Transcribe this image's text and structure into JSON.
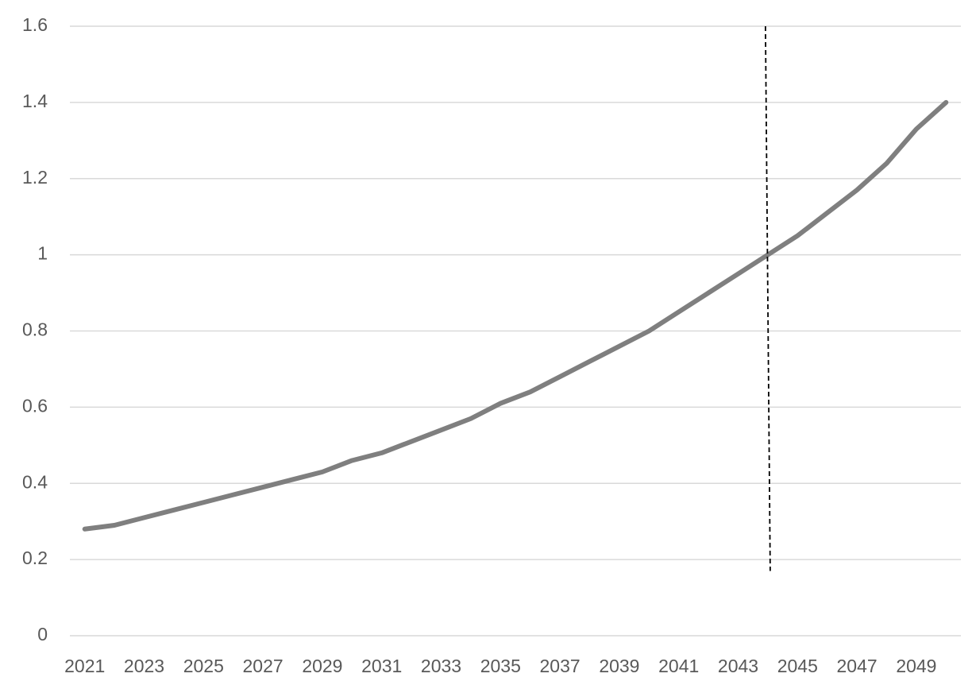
{
  "chart_data": {
    "type": "line",
    "x": [
      2021,
      2022,
      2023,
      2024,
      2025,
      2026,
      2027,
      2028,
      2029,
      2030,
      2031,
      2032,
      2033,
      2034,
      2035,
      2036,
      2037,
      2038,
      2039,
      2040,
      2041,
      2042,
      2043,
      2044,
      2045,
      2046,
      2047,
      2048,
      2049,
      2050
    ],
    "series": [
      {
        "color": "#7f7f7f",
        "values": [
          0.28,
          0.29,
          0.31,
          0.33,
          0.35,
          0.37,
          0.39,
          0.41,
          0.43,
          0.46,
          0.48,
          0.51,
          0.54,
          0.57,
          0.61,
          0.64,
          0.68,
          0.72,
          0.76,
          0.8,
          0.85,
          0.9,
          0.95,
          1.0,
          1.05,
          1.11,
          1.17,
          1.24,
          1.33,
          1.4
        ]
      }
    ],
    "xlim": [
      2020.5,
      2050.5
    ],
    "xticks": [
      2021,
      2023,
      2025,
      2027,
      2029,
      2031,
      2033,
      2035,
      2037,
      2039,
      2041,
      2043,
      2045,
      2047,
      2049
    ],
    "ylim": [
      0,
      1.6
    ],
    "yticks": [
      0,
      0.2,
      0.4,
      0.6,
      0.8,
      1,
      1.2,
      1.4,
      1.6
    ],
    "grid": true,
    "vline": {
      "x": 2044,
      "from": 0.17,
      "to": 1.6,
      "color": "#000000"
    }
  }
}
